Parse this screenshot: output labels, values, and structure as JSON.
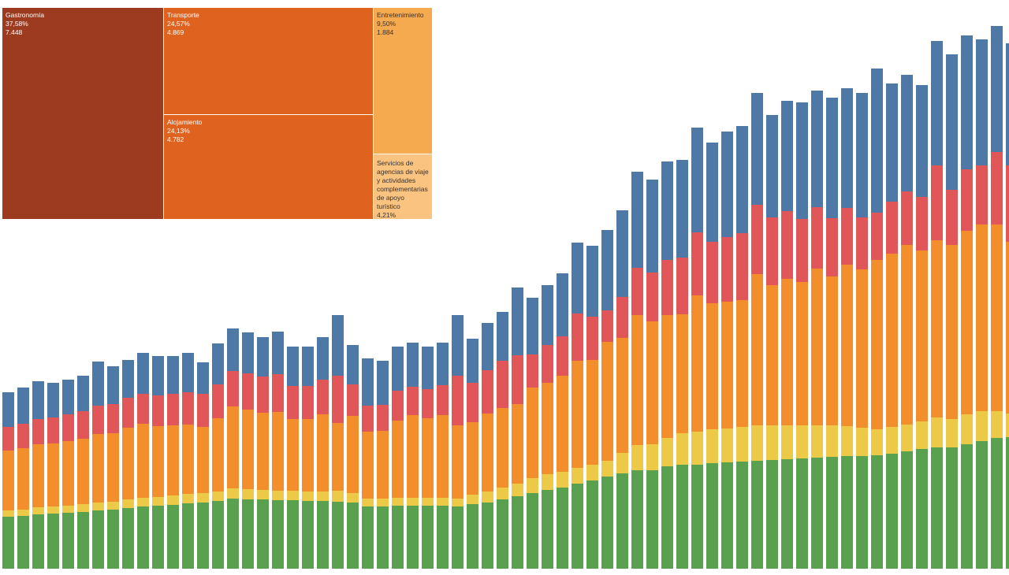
{
  "chart_data": [
    {
      "type": "treemap",
      "items": [
        {
          "label": "Gastronomía",
          "share": 37.58,
          "share_label": "37,58%",
          "value": 7448,
          "value_label": "7.448",
          "color": "#9c3b20"
        },
        {
          "label": "Transporte",
          "share": 24.57,
          "share_label": "24,57%",
          "value": 4869,
          "value_label": "4.869",
          "color": "#e0621f"
        },
        {
          "label": "Alojamiento",
          "share": 24.13,
          "share_label": "24,13%",
          "value": 4782,
          "value_label": "4.782",
          "color": "#e0621f"
        },
        {
          "label": "Entretenimiento",
          "share": 9.5,
          "share_label": "9,50%",
          "value": 1884,
          "value_label": "1.884",
          "color": "#f6aa50"
        },
        {
          "label": "Servicios de agencias de viaje y actividades complementarias de apoyo turístico",
          "share": 4.21,
          "share_label": "4,21%",
          "color": "#fbc380"
        }
      ]
    },
    {
      "type": "stacked_bar",
      "ylim": [
        0,
        700
      ],
      "series": [
        {
          "color": "#59a14f",
          "values": [
            66,
            67,
            69,
            70,
            71,
            72,
            74,
            75,
            77,
            79,
            80,
            81,
            83,
            84,
            86,
            89,
            88,
            88,
            87,
            87,
            86,
            86,
            85,
            84,
            79,
            79,
            80,
            80,
            80,
            80,
            79,
            82,
            84,
            88,
            92,
            96,
            100,
            103,
            108,
            112,
            117,
            121,
            125,
            125,
            130,
            132,
            132,
            134,
            135,
            136,
            137,
            138,
            139,
            140,
            141,
            142,
            143,
            143,
            144,
            146,
            149,
            152,
            154,
            154,
            158,
            162,
            166,
            167
          ]
        },
        {
          "color": "#edc948",
          "values": [
            8,
            8,
            9,
            9,
            9,
            10,
            10,
            10,
            11,
            11,
            11,
            12,
            12,
            12,
            12,
            13,
            13,
            12,
            12,
            12,
            12,
            12,
            14,
            12,
            10,
            10,
            10,
            10,
            10,
            10,
            10,
            12,
            14,
            15,
            16,
            19,
            20,
            20,
            20,
            20,
            20,
            26,
            32,
            33,
            36,
            40,
            42,
            43,
            43,
            44,
            45,
            44,
            43,
            42,
            41,
            40,
            38,
            36,
            33,
            34,
            34,
            35,
            38,
            36,
            38,
            38,
            34,
            30
          ]
        },
        {
          "color": "#f28e2b",
          "values": [
            76,
            78,
            80,
            80,
            82,
            83,
            87,
            87,
            91,
            94,
            90,
            89,
            88,
            84,
            93,
            104,
            101,
            98,
            100,
            91,
            92,
            98,
            86,
            98,
            85,
            86,
            98,
            105,
            101,
            105,
            93,
            92,
            99,
            101,
            101,
            115,
            116,
            122,
            136,
            133,
            151,
            146,
            165,
            156,
            156,
            151,
            173,
            160,
            161,
            161,
            192,
            178,
            186,
            182,
            199,
            189,
            205,
            201,
            215,
            220,
            228,
            217,
            225,
            221,
            233,
            237,
            237,
            218
          ]
        },
        {
          "color": "#e15759",
          "values": [
            30,
            31,
            32,
            33,
            34,
            35,
            36,
            37,
            38,
            38,
            39,
            40,
            41,
            42,
            43,
            45,
            46,
            46,
            48,
            42,
            42,
            44,
            60,
            40,
            33,
            33,
            38,
            36,
            37,
            38,
            63,
            50,
            55,
            60,
            62,
            42,
            48,
            50,
            60,
            55,
            40,
            52,
            60,
            62,
            70,
            72,
            80,
            78,
            82,
            85,
            88,
            86,
            86,
            80,
            78,
            74,
            72,
            66,
            60,
            66,
            68,
            68,
            95,
            70,
            78,
            75,
            92,
            97
          ]
        },
        {
          "color": "#4e79a7",
          "values": [
            44,
            46,
            48,
            44,
            44,
            45,
            56,
            48,
            48,
            52,
            50,
            48,
            50,
            40,
            52,
            54,
            52,
            50,
            54,
            50,
            50,
            54,
            77,
            50,
            60,
            56,
            56,
            56,
            54,
            54,
            77,
            56,
            60,
            62,
            86,
            72,
            76,
            80,
            90,
            90,
            102,
            110,
            122,
            118,
            125,
            124,
            133,
            126,
            134,
            136,
            142,
            130,
            140,
            148,
            148,
            153,
            152,
            158,
            183,
            150,
            148,
            142,
            158,
            172,
            170,
            160,
            160,
            155
          ]
        }
      ]
    }
  ]
}
